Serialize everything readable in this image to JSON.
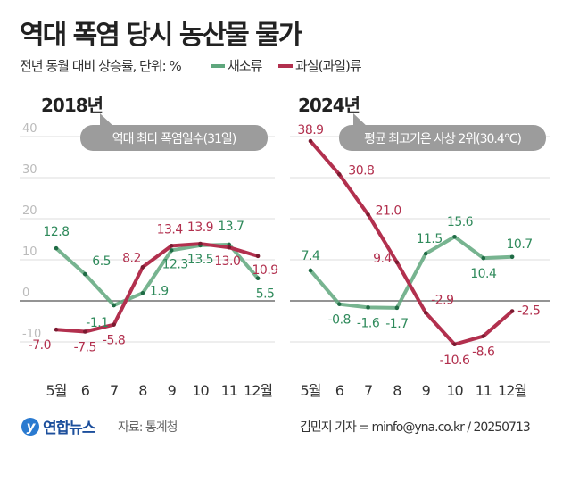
{
  "title": "역대 폭염 당시 농산물 물가",
  "subtitle": "전년 동월 대비 상승률, 단위: %",
  "legend": [
    {
      "name": "채소류",
      "color": "#5fa77d"
    },
    {
      "name": "과실(과일)류",
      "color": "#b2304e"
    }
  ],
  "footer": {
    "logo": "연합뉴스",
    "source": "자료: 통계청",
    "credit": "김민지 기자 = minfo@yna.co.kr / 20250713"
  },
  "chart_data": [
    {
      "type": "line",
      "title": "2018년",
      "annotation": "역대 최다 폭염일수(31일)",
      "categories": [
        "5월",
        "6",
        "7",
        "8",
        "9",
        "10",
        "11",
        "12월"
      ],
      "yticks": [
        40,
        30,
        20,
        10,
        0,
        -10
      ],
      "ylim": [
        -10,
        40
      ],
      "grid": true,
      "series": [
        {
          "name": "채소류",
          "values": [
            12.8,
            6.5,
            -1.1,
            1.9,
            12.3,
            13.5,
            13.7,
            5.5
          ]
        },
        {
          "name": "과실(과일)류",
          "values": [
            -7.0,
            -7.5,
            -5.8,
            8.2,
            13.4,
            13.9,
            13.0,
            10.9
          ]
        }
      ]
    },
    {
      "type": "line",
      "title": "2024년",
      "annotation": "평균 최고기온 사상 2위(30.4°C)",
      "categories": [
        "5월",
        "6",
        "7",
        "8",
        "9",
        "10",
        "11",
        "12월"
      ],
      "ylim": [
        -10,
        40
      ],
      "grid": true,
      "series": [
        {
          "name": "채소류",
          "values": [
            7.4,
            -0.8,
            -1.6,
            -1.7,
            11.5,
            15.6,
            10.4,
            10.7
          ]
        },
        {
          "name": "과실(과일)류",
          "values": [
            38.9,
            30.8,
            21.0,
            9.4,
            -2.9,
            -10.6,
            -8.6,
            -2.5
          ]
        }
      ]
    }
  ]
}
